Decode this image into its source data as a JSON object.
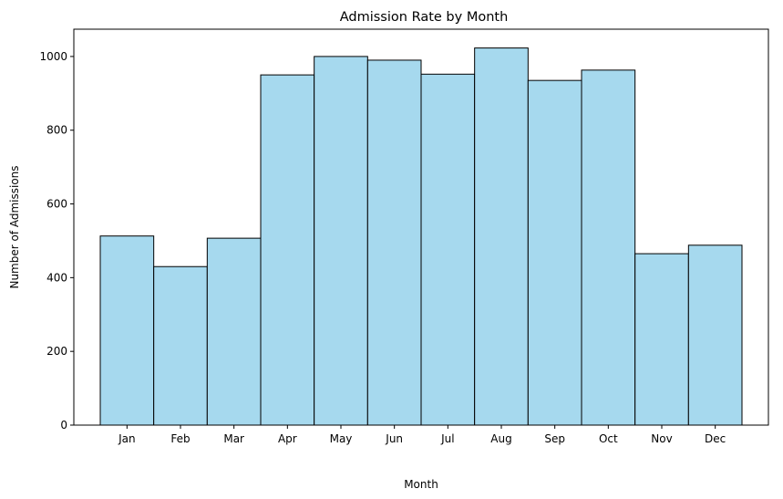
{
  "chart_data": {
    "type": "bar",
    "title": "Admission Rate by Month",
    "xlabel": "Month",
    "ylabel": "Number of Admissions",
    "categories": [
      "Jan",
      "Feb",
      "Mar",
      "Apr",
      "May",
      "Jun",
      "Jul",
      "Aug",
      "Sep",
      "Oct",
      "Nov",
      "Dec"
    ],
    "values": [
      513,
      430,
      507,
      950,
      1000,
      990,
      952,
      1023,
      935,
      963,
      465,
      488
    ],
    "yticks": [
      0,
      200,
      400,
      600,
      800,
      1000
    ],
    "ylim": [
      0,
      1074
    ],
    "grid": false,
    "bar_color": "#a6d9ee",
    "edge_color": "#000000"
  }
}
